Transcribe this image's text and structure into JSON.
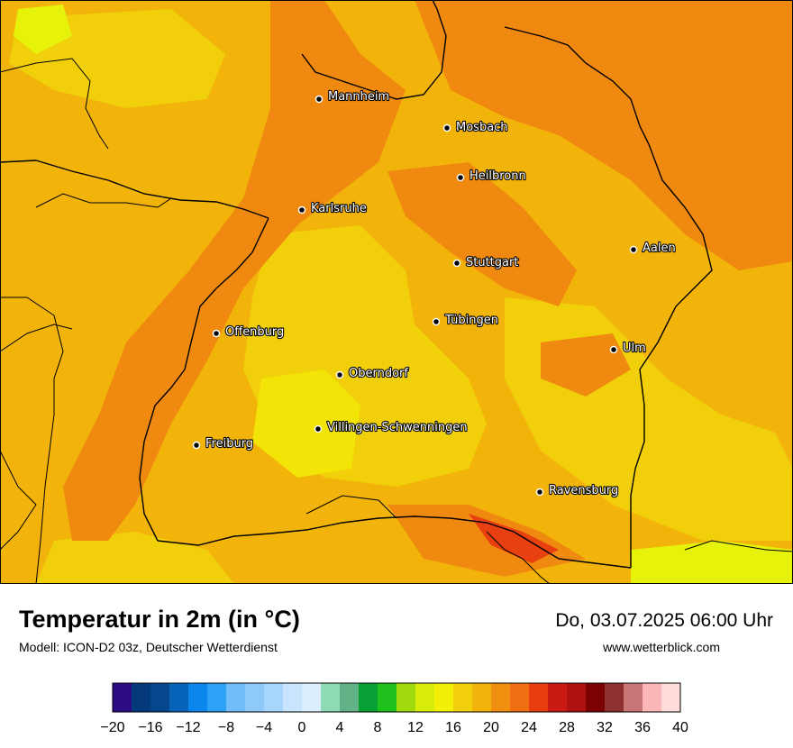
{
  "header": {
    "title": "Temperatur in 2m (in °C)",
    "subtitle": "Modell: ICON-D2 03z, Deutscher Wetterdienst",
    "datetime": "Do, 03.07.2025 06:00 Uhr",
    "website": "www.wetterblick.com"
  },
  "cities": [
    {
      "name": "Mannheim"
    },
    {
      "name": "Mosbach"
    },
    {
      "name": "Heilbronn"
    },
    {
      "name": "Karlsruhe"
    },
    {
      "name": "Aalen"
    },
    {
      "name": "Stuttgart"
    },
    {
      "name": "Tübingen"
    },
    {
      "name": "Offenburg"
    },
    {
      "name": "Ulm"
    },
    {
      "name": "Oberndorf"
    },
    {
      "name": "Villingen-Schwenningen"
    },
    {
      "name": "Freiburg"
    },
    {
      "name": "Ravensburg"
    }
  ],
  "legend": {
    "min": -20,
    "max": 40,
    "step": 2,
    "tick_labels": [
      "−20",
      "−16",
      "−12",
      "−8",
      "−4",
      "0",
      "4",
      "8",
      "12",
      "16",
      "20",
      "24",
      "28",
      "32",
      "36",
      "40"
    ],
    "colors": [
      "#2c0c82",
      "#043a7a",
      "#05478e",
      "#0663b8",
      "#0a86ec",
      "#2da1f5",
      "#72bdf9",
      "#8ec9f9",
      "#a6d6fb",
      "#c9e4fd",
      "#dbeefe",
      "#8fdbb6",
      "#63b287",
      "#06a035",
      "#1ec01c",
      "#a0d90c",
      "#d7ec08",
      "#f2f007",
      "#f1d00b",
      "#f2b40b",
      "#f18f10",
      "#ef6f12",
      "#e83d0e",
      "#c91a13",
      "#af1010",
      "#7c0202",
      "#8f3030",
      "#c87575",
      "#fbb7b7",
      "#ffdcdc"
    ]
  },
  "map_colors": {
    "orange": "#f0890f",
    "amber": "#f2b40b",
    "gold": "#f1cf0b",
    "yellow": "#f2e407",
    "lime": "#e6f209",
    "red": "#e84010"
  }
}
